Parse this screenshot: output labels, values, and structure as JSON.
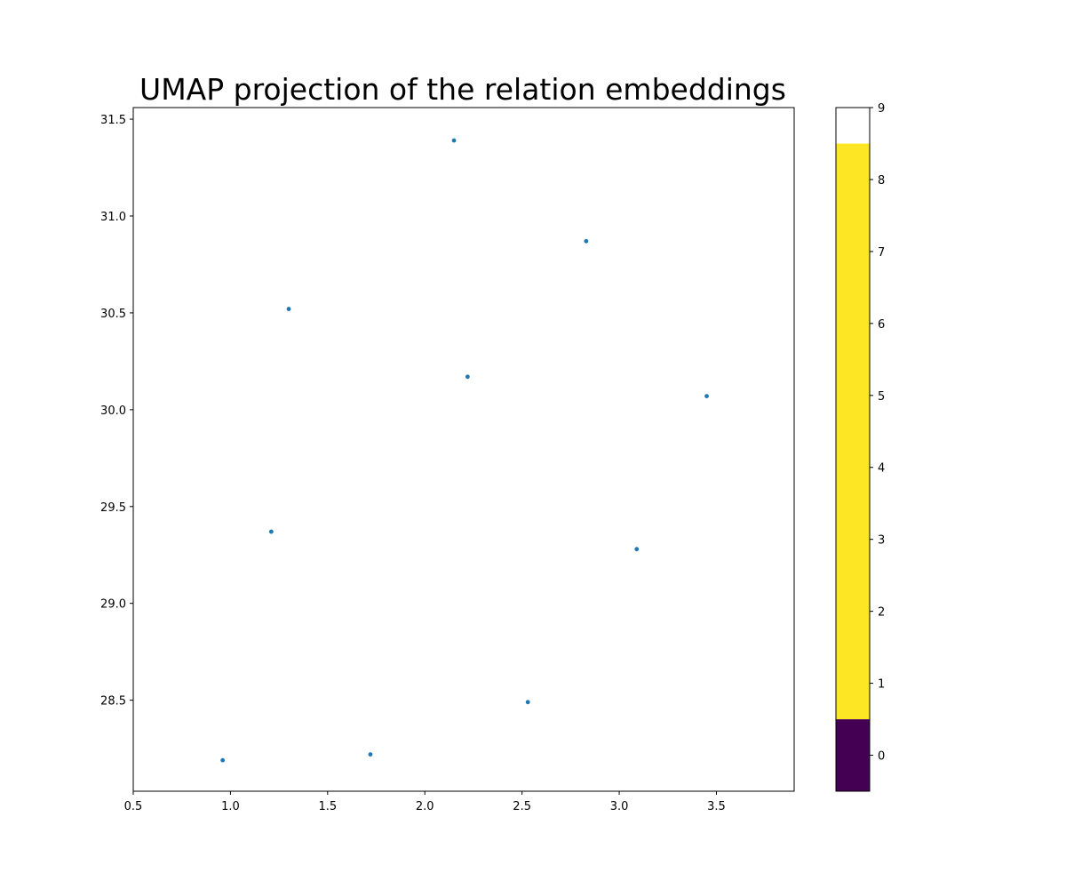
{
  "chart_data": {
    "type": "scatter",
    "title": "UMAP projection of the relation embeddings",
    "xlabel": "",
    "ylabel": "",
    "xlim": [
      0.5,
      3.9
    ],
    "ylim": [
      28.03,
      31.56
    ],
    "x_ticks": [
      "0.5",
      "1.0",
      "1.5",
      "2.0",
      "2.5",
      "3.0",
      "3.5"
    ],
    "y_ticks": [
      "28.5",
      "29.0",
      "29.5",
      "30.0",
      "30.5",
      "31.0",
      "31.5"
    ],
    "grid": false,
    "marker_color": "#1f77b4",
    "points": [
      {
        "x": 2.15,
        "y": 31.39
      },
      {
        "x": 2.83,
        "y": 30.87
      },
      {
        "x": 1.3,
        "y": 30.52
      },
      {
        "x": 2.22,
        "y": 30.17
      },
      {
        "x": 3.45,
        "y": 30.07
      },
      {
        "x": 1.21,
        "y": 29.37
      },
      {
        "x": 3.09,
        "y": 29.28
      },
      {
        "x": 2.53,
        "y": 28.49
      },
      {
        "x": 1.72,
        "y": 28.22
      },
      {
        "x": 0.96,
        "y": 28.19
      }
    ],
    "colorbar": {
      "ticks": [
        "0",
        "1",
        "2",
        "3",
        "4",
        "5",
        "6",
        "7",
        "8",
        "9"
      ],
      "range": [
        -0.5,
        9
      ],
      "segments": [
        {
          "from": -0.5,
          "to": 0.5,
          "color": "#440154"
        },
        {
          "from": 0.5,
          "to": 8.5,
          "color": "#fde725"
        },
        {
          "from": 8.5,
          "to": 9,
          "color": "#ffffff"
        }
      ]
    }
  }
}
